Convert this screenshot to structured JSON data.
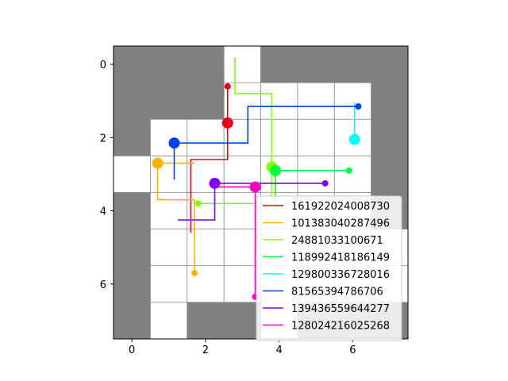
{
  "chart_data": {
    "type": "grid-paths",
    "xlim": [
      -0.5,
      7.5
    ],
    "ylim": [
      7.5,
      -0.5
    ],
    "x_ticks": [
      0,
      2,
      4,
      6
    ],
    "y_ticks": [
      0,
      2,
      4,
      6
    ],
    "x_tick_labels": [
      "0",
      "2",
      "4",
      "6"
    ],
    "y_tick_labels": [
      "0",
      "2",
      "4",
      "6"
    ],
    "grid": true,
    "legend_position": "lower-right",
    "colors": {
      "wall": "#808080",
      "free": "#ffffff",
      "gridline": "#808080"
    },
    "walls": [
      [
        0,
        0
      ],
      [
        1,
        0
      ],
      [
        2,
        0
      ],
      [
        4,
        0
      ],
      [
        5,
        0
      ],
      [
        6,
        0
      ],
      [
        7,
        0
      ],
      [
        0,
        1
      ],
      [
        1,
        1
      ],
      [
        2,
        1
      ],
      [
        7,
        1
      ],
      [
        0,
        2
      ],
      [
        7,
        2
      ],
      [
        7,
        3
      ],
      [
        0,
        4
      ],
      [
        7,
        4
      ],
      [
        0,
        5
      ],
      [
        0,
        6
      ],
      [
        0,
        7
      ],
      [
        2,
        7
      ],
      [
        3,
        7
      ],
      [
        5,
        7
      ],
      [
        6,
        7
      ],
      [
        7,
        7
      ]
    ],
    "series": [
      {
        "name": "161922024008730",
        "color": "#e6001a",
        "start": [
          2.6,
          1.6
        ],
        "path": [
          [
            2.6,
            0.6
          ],
          [
            2.6,
            2.6
          ],
          [
            1.6,
            2.6
          ],
          [
            1.6,
            4.6
          ]
        ]
      },
      {
        "name": "101383040287496",
        "color": "#ffb300",
        "start": [
          0.7,
          2.7
        ],
        "path": [
          [
            1.7,
            5.7
          ],
          [
            1.7,
            3.7
          ],
          [
            0.7,
            3.7
          ],
          [
            0.7,
            2.7
          ],
          [
            1.7,
            2.7
          ]
        ]
      },
      {
        "name": "24881033100671",
        "color": "#80ff00",
        "start": [
          3.8,
          2.8
        ],
        "path": [
          [
            1.8,
            3.8
          ],
          [
            3.8,
            3.8
          ],
          [
            3.8,
            0.8
          ],
          [
            2.8,
            0.8
          ],
          [
            2.8,
            -0.2
          ]
        ]
      },
      {
        "name": "118992418186149",
        "color": "#00ff40",
        "start": [
          3.9,
          2.9
        ],
        "path": [
          [
            5.9,
            2.9
          ],
          [
            3.9,
            2.9
          ],
          [
            3.9,
            3.9
          ]
        ]
      },
      {
        "name": "129800336728016",
        "color": "#00ffff",
        "start": [
          6.05,
          2.05
        ],
        "path": [
          [
            6.05,
            2.05
          ],
          [
            6.05,
            1.05
          ]
        ]
      },
      {
        "name": "81565394786706",
        "color": "#0040ff",
        "start": [
          1.15,
          2.15
        ],
        "path": [
          [
            6.15,
            1.15
          ],
          [
            3.15,
            1.15
          ],
          [
            3.15,
            2.15
          ],
          [
            1.15,
            2.15
          ],
          [
            1.15,
            3.15
          ]
        ]
      },
      {
        "name": "139436559644277",
        "color": "#8000ff",
        "start": [
          2.25,
          3.25
        ],
        "path": [
          [
            5.25,
            3.25
          ],
          [
            2.25,
            3.25
          ],
          [
            2.25,
            4.25
          ],
          [
            1.25,
            4.25
          ]
        ]
      },
      {
        "name": "128024216025268",
        "color": "#ff00bf",
        "start": [
          3.35,
          3.35
        ],
        "path": [
          [
            3.35,
            6.35
          ],
          [
            3.35,
            3.35
          ],
          [
            2.35,
            3.35
          ]
        ]
      }
    ]
  }
}
